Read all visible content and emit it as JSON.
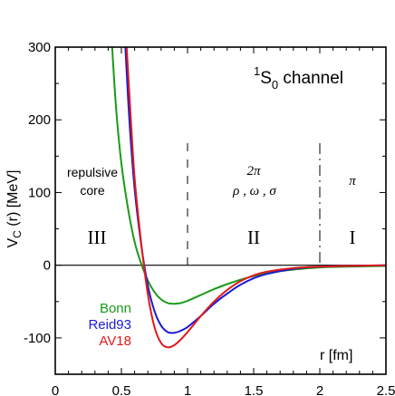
{
  "chart_data": {
    "type": "line",
    "xlabel": "r [fm]",
    "ylabel": "V_C (r) [MeV]",
    "xlim": [
      0,
      2.5
    ],
    "ylim": [
      -150,
      300
    ],
    "xticks": [
      0,
      0.5,
      1,
      1.5,
      2,
      2.5
    ],
    "xtick_labels": [
      "0",
      "0.5",
      "1",
      "1.5",
      "2",
      "2.5"
    ],
    "yticks": [
      -100,
      0,
      100,
      200,
      300
    ],
    "ytick_labels": [
      "-100",
      "0",
      "100",
      "200",
      "300"
    ],
    "zero_line": true,
    "region_dividers_x": [
      1.0,
      2.0
    ],
    "channel_label": {
      "sup": "1",
      "main": "S",
      "sub": "0",
      "rest": " channel"
    },
    "annotations": {
      "repulsive_line1": "repulsive",
      "repulsive_line2": "core",
      "region_III": "III",
      "region_II": "II",
      "region_I": "I",
      "two_pi": "2π",
      "mesons": "ρ , ω , σ",
      "pi": "π"
    },
    "series": [
      {
        "name": "Bonn",
        "color": "#1a9a1a",
        "x": [
          0.43,
          0.46,
          0.5,
          0.55,
          0.6,
          0.65,
          0.7,
          0.75,
          0.8,
          0.85,
          0.9,
          0.95,
          1.0,
          1.1,
          1.2,
          1.3,
          1.4,
          1.5,
          1.6,
          1.8,
          2.0,
          2.2,
          2.5
        ],
        "y": [
          300,
          215,
          140,
          78,
          32,
          2,
          -21,
          -37,
          -47,
          -52,
          -53,
          -52,
          -49,
          -41,
          -33,
          -26,
          -20,
          -15,
          -11,
          -6,
          -3,
          -2,
          -1
        ]
      },
      {
        "name": "Reid93",
        "color": "#1a1ad6",
        "x": [
          0.53,
          0.56,
          0.6,
          0.65,
          0.7,
          0.75,
          0.8,
          0.85,
          0.9,
          0.95,
          1.0,
          1.1,
          1.2,
          1.3,
          1.4,
          1.5,
          1.6,
          1.8,
          2.0,
          2.2,
          2.5
        ],
        "y": [
          300,
          200,
          105,
          28,
          -28,
          -63,
          -83,
          -92,
          -93,
          -90,
          -85,
          -70,
          -53,
          -39,
          -27,
          -18,
          -12,
          -5,
          -2,
          -1,
          0
        ]
      },
      {
        "name": "AV18",
        "color": "#e01a1a",
        "x": [
          0.54,
          0.57,
          0.6,
          0.65,
          0.7,
          0.75,
          0.8,
          0.85,
          0.9,
          0.95,
          1.0,
          1.1,
          1.2,
          1.3,
          1.4,
          1.5,
          1.6,
          1.8,
          2.0,
          2.2,
          2.5
        ],
        "y": [
          300,
          205,
          120,
          30,
          -40,
          -85,
          -107,
          -113,
          -110,
          -102,
          -92,
          -70,
          -50,
          -34,
          -22,
          -14,
          -9,
          -4,
          -2,
          -1,
          0
        ]
      }
    ]
  }
}
